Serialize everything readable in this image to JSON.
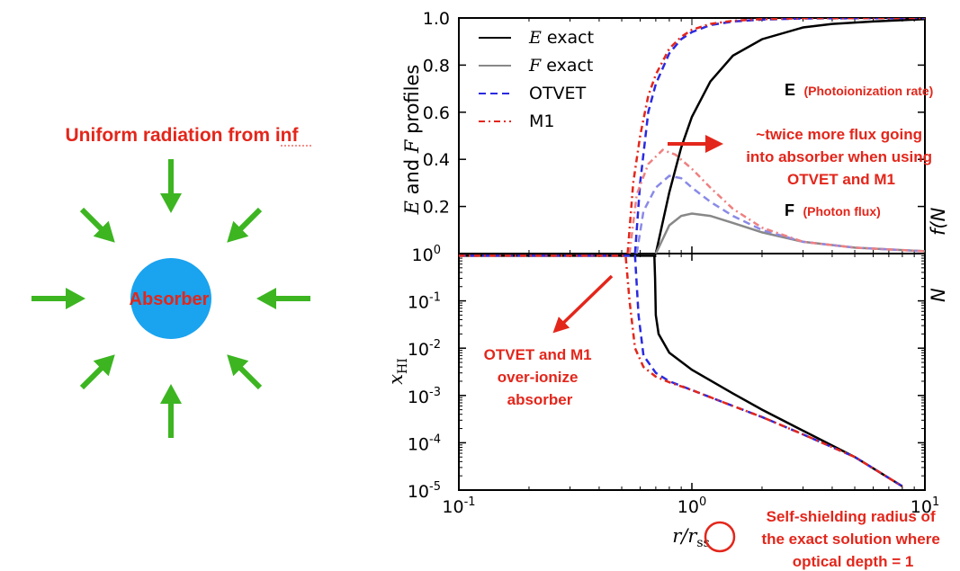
{
  "diagram": {
    "title": "Uniform radiation from inf",
    "absorber_label": "Absorber",
    "absorber_color": "#1aa3ef",
    "arrow_color": "#3cb521",
    "title_color": "#e3261b"
  },
  "annotations": {
    "twice_flux": [
      "~twice more flux going",
      "into absorber when using",
      "OTVET and M1"
    ],
    "over_ionize": [
      "OTVET and M1",
      "over-ionize",
      "absorber"
    ],
    "self_shielding": [
      "Self-shielding radius of",
      "the exact solution where",
      "optical depth = 1"
    ],
    "e_label_bold": "E",
    "e_label_note": "(Photoionization rate)",
    "f_label_bold": "F",
    "f_label_note": "(Photon flux)",
    "right_axis_clip_top": "f(N",
    "right_axis_clip_bottom": "N"
  },
  "chart_data": [
    {
      "type": "line",
      "panel": "top",
      "ylabel": "E and F profiles",
      "xscale": "log",
      "xlim": [
        0.1,
        10
      ],
      "ylim": [
        0,
        1.0
      ],
      "yticks": [
        0.2,
        0.4,
        0.6,
        0.8,
        1.0
      ],
      "ytick_labels": [
        "0.2",
        "0.4",
        "0.6",
        "0.8",
        "1.0"
      ],
      "legend_position": "top-left",
      "legend": [
        {
          "label_var": "E",
          "label_text": " exact",
          "color": "#000000",
          "dash": "solid"
        },
        {
          "label_var": "F",
          "label_text": " exact",
          "color": "#888888",
          "dash": "solid"
        },
        {
          "label_var": "",
          "label_text": "OTVET",
          "color": "#2a2ae0",
          "dash": "dashed"
        },
        {
          "label_var": "",
          "label_text": "M1",
          "color": "#e3261b",
          "dash": "dashdot"
        }
      ],
      "series": [
        {
          "name": "E exact",
          "color": "#000000",
          "dash": "solid",
          "x": [
            0.7,
            0.8,
            0.9,
            1.0,
            1.2,
            1.5,
            2.0,
            3.0,
            4.0,
            6.0,
            10.0
          ],
          "y": [
            0.0,
            0.26,
            0.45,
            0.58,
            0.73,
            0.84,
            0.91,
            0.96,
            0.975,
            0.985,
            0.995
          ]
        },
        {
          "name": "F exact",
          "color": "#888888",
          "dash": "solid",
          "x": [
            0.7,
            0.8,
            0.9,
            1.0,
            1.2,
            1.5,
            2.0,
            3.0,
            5.0,
            10.0
          ],
          "y": [
            0.0,
            0.12,
            0.16,
            0.17,
            0.16,
            0.13,
            0.09,
            0.05,
            0.025,
            0.01
          ]
        },
        {
          "name": "OTVET E",
          "color": "#2a2ae0",
          "dash": "dashed",
          "x": [
            0.57,
            0.6,
            0.65,
            0.7,
            0.8,
            0.9,
            1.0,
            1.2,
            1.5,
            2.0,
            3.0,
            10.0
          ],
          "y": [
            0.0,
            0.3,
            0.6,
            0.72,
            0.85,
            0.91,
            0.94,
            0.97,
            0.985,
            0.993,
            0.998,
            1.0
          ]
        },
        {
          "name": "M1 E",
          "color": "#e3261b",
          "dash": "dashdot",
          "x": [
            0.53,
            0.56,
            0.6,
            0.65,
            0.7,
            0.8,
            0.9,
            1.0,
            1.2,
            1.5,
            2.0,
            3.0,
            10.0
          ],
          "y": [
            0.0,
            0.3,
            0.5,
            0.67,
            0.76,
            0.87,
            0.92,
            0.95,
            0.975,
            0.988,
            0.995,
            0.999,
            1.0
          ]
        },
        {
          "name": "OTVET F",
          "color": "#8a8ae8",
          "dash": "dashed",
          "x": [
            0.58,
            0.62,
            0.7,
            0.8,
            0.9,
            1.0,
            1.2,
            1.5,
            2.0,
            3.0,
            5.0,
            10.0
          ],
          "y": [
            0.0,
            0.18,
            0.28,
            0.33,
            0.32,
            0.28,
            0.22,
            0.16,
            0.1,
            0.05,
            0.025,
            0.01
          ]
        },
        {
          "name": "M1 F",
          "color": "#ef8080",
          "dash": "dashdot",
          "x": [
            0.54,
            0.58,
            0.65,
            0.75,
            0.85,
            1.0,
            1.2,
            1.5,
            2.0,
            3.0,
            5.0,
            10.0
          ],
          "y": [
            0.0,
            0.25,
            0.38,
            0.44,
            0.42,
            0.36,
            0.28,
            0.19,
            0.11,
            0.05,
            0.025,
            0.01
          ]
        }
      ]
    },
    {
      "type": "line",
      "panel": "bottom",
      "xlabel": "r/r_ss",
      "ylabel": "x_HI",
      "xscale": "log",
      "yscale": "log",
      "xlim": [
        0.1,
        10
      ],
      "ylim": [
        1e-05,
        1
      ],
      "xticks": [
        0.1,
        1,
        10
      ],
      "xtick_labels": [
        {
          "base": "10",
          "exp": "-1"
        },
        {
          "base": "10",
          "exp": "0"
        },
        {
          "base": "10",
          "exp": "1"
        }
      ],
      "yticks": [
        1,
        0.1,
        0.01,
        0.001,
        0.0001,
        1e-05
      ],
      "ytick_labels": [
        {
          "base": "10",
          "exp": "0"
        },
        {
          "base": "10",
          "exp": "-1"
        },
        {
          "base": "10",
          "exp": "-2"
        },
        {
          "base": "10",
          "exp": "-3"
        },
        {
          "base": "10",
          "exp": "-4"
        },
        {
          "base": "10",
          "exp": "-5"
        }
      ],
      "series": [
        {
          "name": "exact",
          "color": "#000000",
          "dash": "solid",
          "x": [
            0.1,
            0.69,
            0.695,
            0.7,
            0.72,
            0.8,
            1.0,
            1.5,
            2.0,
            3.0,
            5.0,
            8.0
          ],
          "y": [
            0.9,
            0.9,
            0.3,
            0.05,
            0.02,
            0.008,
            0.0035,
            0.0011,
            0.0005,
            0.00018,
            5e-05,
            1.2e-05
          ]
        },
        {
          "name": "OTVET",
          "color": "#2a2ae0",
          "dash": "dashed",
          "x": [
            0.1,
            0.57,
            0.59,
            0.62,
            0.7,
            0.8,
            1.0,
            1.5,
            2.0,
            3.0,
            5.0,
            8.0
          ],
          "y": [
            0.9,
            0.9,
            0.05,
            0.007,
            0.003,
            0.002,
            0.0013,
            0.0006,
            0.00035,
            0.00015,
            5e-05,
            1.2e-05
          ]
        },
        {
          "name": "M1",
          "color": "#e3261b",
          "dash": "dashdot",
          "x": [
            0.1,
            0.52,
            0.54,
            0.57,
            0.62,
            0.7,
            0.8,
            1.0,
            1.5,
            2.0,
            3.0,
            5.0,
            8.0
          ],
          "y": [
            0.9,
            0.9,
            0.1,
            0.01,
            0.004,
            0.0025,
            0.0019,
            0.0013,
            0.0006,
            0.00035,
            0.00015,
            5e-05,
            1.2e-05
          ]
        }
      ]
    }
  ]
}
